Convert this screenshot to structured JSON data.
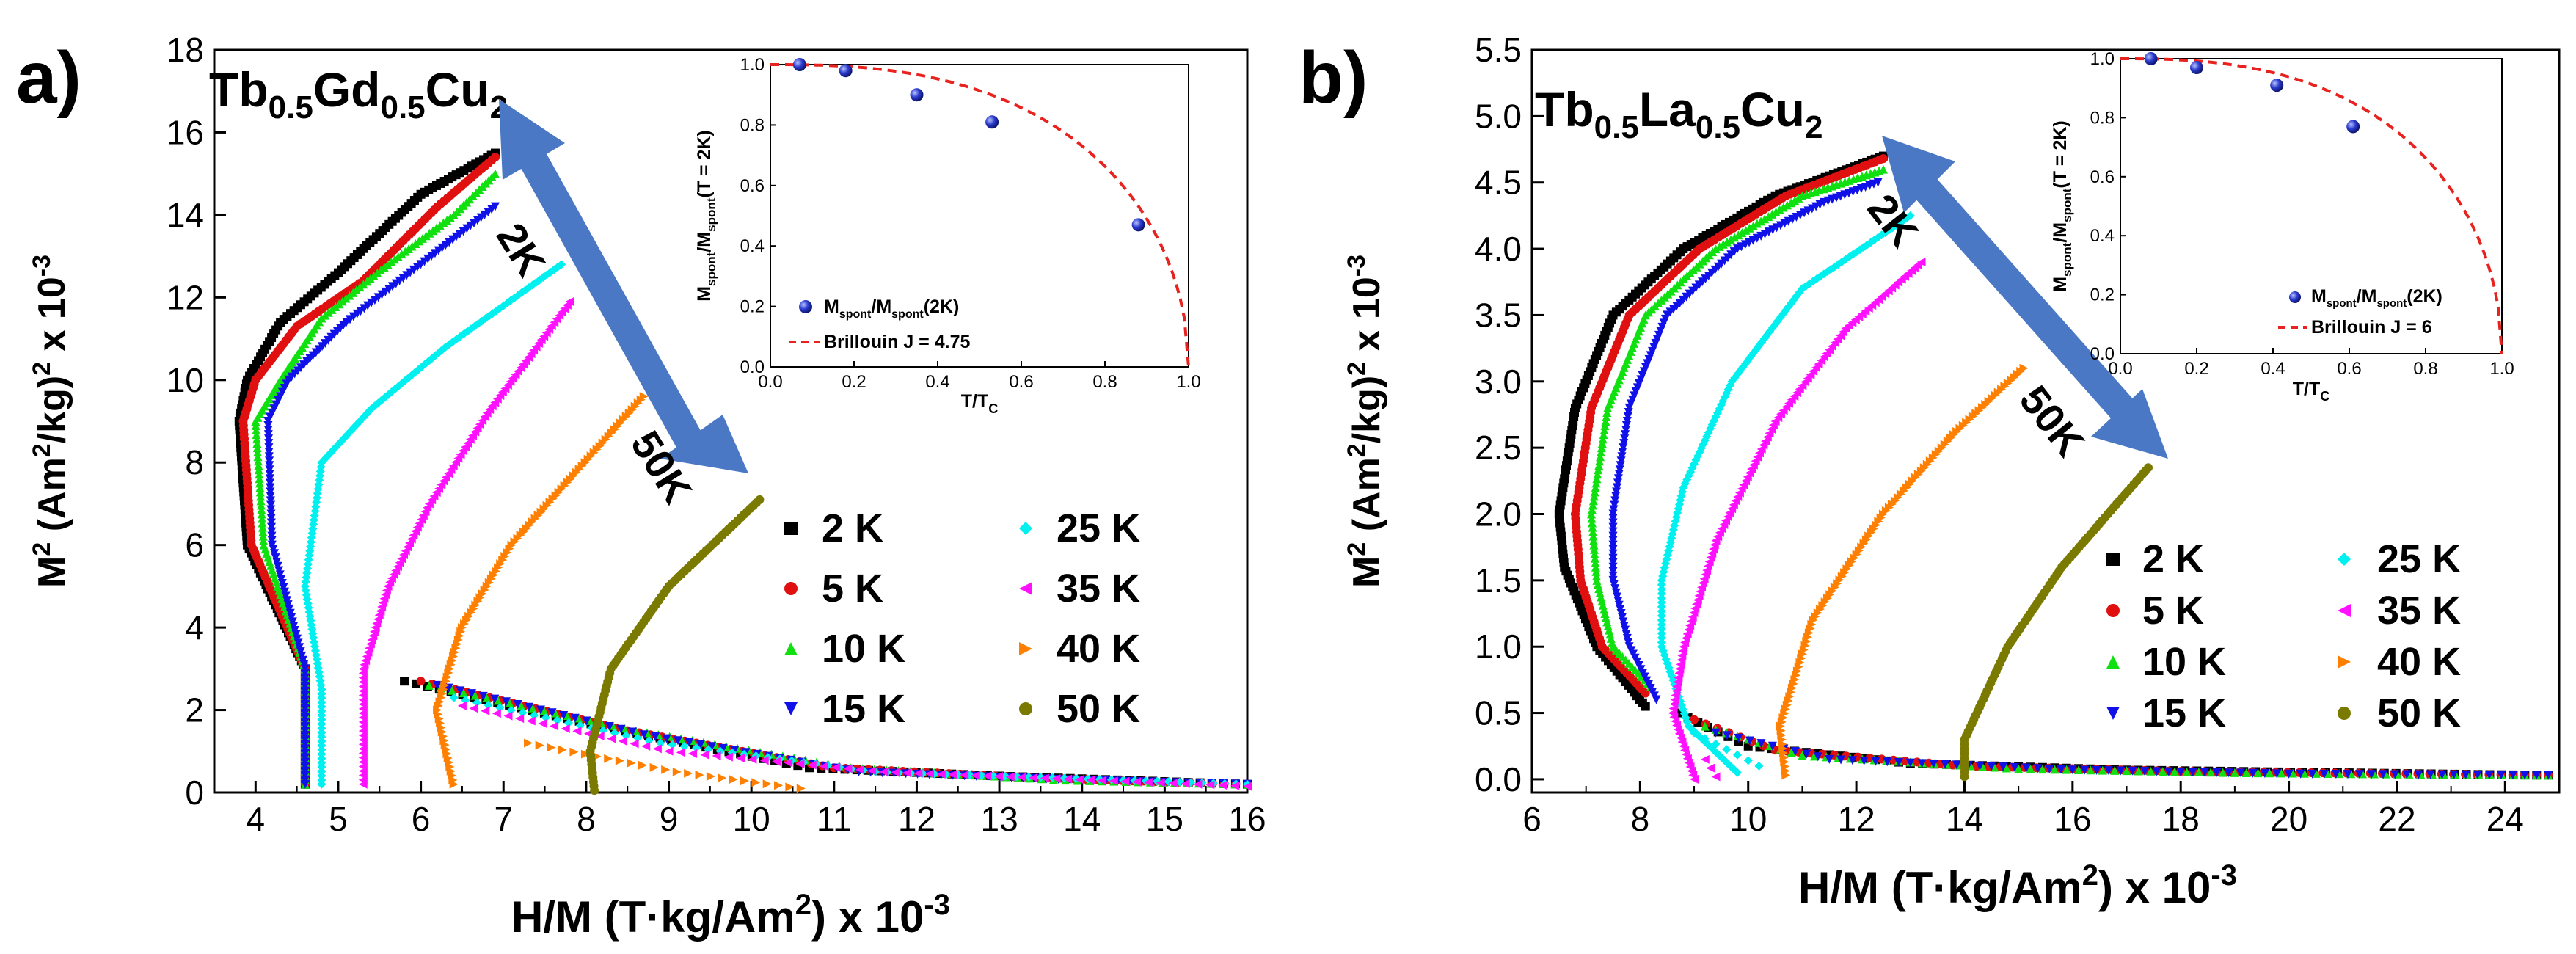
{
  "chart_data": [
    {
      "panel_label": "a)",
      "type": "scatter",
      "compound": {
        "base1": "Tb",
        "sub1": "0.5",
        "base2": "Gd",
        "sub2": "0.5",
        "base3": "Cu",
        "sub3": "2"
      },
      "xlabel": {
        "main": "H/M (T·kg/Am",
        "sup": "2",
        "tail": ") x 10",
        "exp": "-3"
      },
      "ylabel": {
        "main": "M",
        "sup1": "2",
        "mid": " (Am",
        "sup2": "2",
        "tail": "/kg)",
        "sup3": "2",
        "end": " x 10",
        "exp": "-3"
      },
      "xlim": [
        3.5,
        16
      ],
      "ylim": [
        0,
        18
      ],
      "xticks": [
        "4",
        "5",
        "6",
        "7",
        "8",
        "9",
        "10",
        "11",
        "12",
        "13",
        "14",
        "15",
        "16"
      ],
      "yticks": [
        "0",
        "2",
        "4",
        "6",
        "8",
        "10",
        "12",
        "14",
        "16",
        "18"
      ],
      "arrow_labels": {
        "start": "2K",
        "end": "50K"
      },
      "series": [
        {
          "name": "2 K",
          "color": "#000000",
          "marker": "square",
          "points": [
            [
              4.6,
              0.2
            ],
            [
              4.6,
              3
            ],
            [
              3.9,
              6
            ],
            [
              3.8,
              9
            ],
            [
              3.9,
              10
            ],
            [
              4.3,
              11.4
            ],
            [
              5,
              12.6
            ],
            [
              6,
              14.5
            ],
            [
              6.9,
              15.5
            ]
          ],
          "tail": [
            [
              5.8,
              2.7
            ],
            [
              8.2,
              1.6
            ],
            [
              10.7,
              0.6
            ],
            [
              13,
              0.4
            ],
            [
              16,
              0.2
            ]
          ]
        },
        {
          "name": "5 K",
          "color": "#e01010",
          "marker": "circle",
          "points": [
            [
              4.6,
              0.2
            ],
            [
              4.6,
              3
            ],
            [
              3.95,
              6
            ],
            [
              3.85,
              9
            ],
            [
              4,
              10
            ],
            [
              4.5,
              11.3
            ],
            [
              5.3,
              12.4
            ],
            [
              6.2,
              14.2
            ],
            [
              6.9,
              15.4
            ]
          ],
          "tail": [
            [
              6,
              2.7
            ],
            [
              8.5,
              1.5
            ],
            [
              11,
              0.6
            ],
            [
              13.5,
              0.35
            ],
            [
              16,
              0.2
            ]
          ]
        },
        {
          "name": "10 K",
          "color": "#10e010",
          "marker": "triangle-up",
          "points": [
            [
              4.6,
              0.2
            ],
            [
              4.6,
              3
            ],
            [
              4.1,
              6
            ],
            [
              4,
              9
            ],
            [
              4.3,
              10
            ],
            [
              4.8,
              11.5
            ],
            [
              5.6,
              12.8
            ],
            [
              6.4,
              14
            ],
            [
              6.9,
              15
            ]
          ],
          "tail": [
            [
              6.1,
              2.6
            ],
            [
              8.6,
              1.5
            ],
            [
              11.2,
              0.6
            ],
            [
              13.8,
              0.3
            ],
            [
              16,
              0.2
            ]
          ]
        },
        {
          "name": "15 K",
          "color": "#1010e8",
          "marker": "triangle-down",
          "points": [
            [
              4.6,
              0.2
            ],
            [
              4.6,
              3
            ],
            [
              4.2,
              6
            ],
            [
              4.15,
              9
            ],
            [
              4.4,
              10
            ],
            [
              5.1,
              11.4
            ],
            [
              6,
              12.8
            ],
            [
              6.9,
              14.2
            ]
          ],
          "tail": [
            [
              6.2,
              2.6
            ],
            [
              8.7,
              1.4
            ],
            [
              11.3,
              0.5
            ],
            [
              14,
              0.3
            ],
            [
              16,
              0.2
            ]
          ]
        },
        {
          "name": "25 K",
          "color": "#00f0f0",
          "marker": "diamond",
          "points": [
            [
              4.8,
              0.2
            ],
            [
              4.8,
              2.5
            ],
            [
              4.6,
              5
            ],
            [
              4.8,
              8
            ],
            [
              5.4,
              9.3
            ],
            [
              6.3,
              10.8
            ],
            [
              7.7,
              12.8
            ]
          ],
          "tail": [
            [
              6.4,
              2.3
            ],
            [
              8.9,
              1.2
            ],
            [
              11.5,
              0.5
            ],
            [
              14.5,
              0.3
            ],
            [
              16,
              0.2
            ]
          ]
        },
        {
          "name": "35 K",
          "color": "#ff10ff",
          "marker": "triangle-left",
          "points": [
            [
              5.3,
              0.2
            ],
            [
              5.3,
              3
            ],
            [
              5.6,
              5
            ],
            [
              6.1,
              7
            ],
            [
              6.8,
              9.2
            ],
            [
              7.8,
              11.9
            ]
          ],
          "tail": [
            [
              6.5,
              2.1
            ],
            [
              9,
              1
            ],
            [
              11.6,
              0.5
            ],
            [
              14.8,
              0.25
            ],
            [
              16,
              0.15
            ]
          ]
        },
        {
          "name": "40 K",
          "color": "#ff8000",
          "marker": "triangle-right",
          "points": [
            [
              6.4,
              0.2
            ],
            [
              6.2,
              2
            ],
            [
              6.5,
              4
            ],
            [
              7.1,
              6
            ],
            [
              8.7,
              9.6
            ]
          ],
          "tail": [
            [
              7.3,
              1.2
            ],
            [
              9.1,
              0.5
            ],
            [
              10.6,
              0.1
            ]
          ]
        },
        {
          "name": "50 K",
          "color": "#7a7a00",
          "marker": "circle",
          "points": [
            [
              8.1,
              0.05
            ],
            [
              8.05,
              1
            ],
            [
              8.3,
              3
            ],
            [
              9,
              5
            ],
            [
              10.1,
              7.1
            ]
          ]
        }
      ],
      "inset": {
        "xlabel": "T/T",
        "xlabel_sub": "C",
        "ylabel": {
          "m": "M",
          "s1": "spont",
          "mid": "/M",
          "s2": "spont",
          "tail": "(T = 2K)"
        },
        "xticks": [
          "0.0",
          "0.2",
          "0.4",
          "0.6",
          "0.8",
          "1.0"
        ],
        "yticks": [
          "0.0",
          "0.2",
          "0.4",
          "0.6",
          "0.8",
          "1.0"
        ],
        "points": [
          [
            0.07,
            1.0
          ],
          [
            0.18,
            0.98
          ],
          [
            0.35,
            0.9
          ],
          [
            0.53,
            0.81
          ],
          [
            0.88,
            0.47
          ]
        ],
        "fit_J": 4.75,
        "legend": {
          "pts": {
            "m": "M",
            "s1": "spont",
            "mid": "/M",
            "s2": "spont",
            "tail": "(2K)"
          },
          "fit": "Brillouin J = 4.75"
        }
      }
    },
    {
      "panel_label": "b)",
      "type": "scatter",
      "compound": {
        "base1": "Tb",
        "sub1": "0.5",
        "base2": "La",
        "sub2": "0.5",
        "base3": "Cu",
        "sub3": "2"
      },
      "xlabel": {
        "main": "H/M (T·kg/Am",
        "sup": "2",
        "tail": ") x 10",
        "exp": "-3"
      },
      "ylabel": {
        "main": "M",
        "sup1": "2",
        "mid": " (Am",
        "sup2": "2",
        "tail": "/kg)",
        "sup3": "2",
        "end": " x 10",
        "exp": "-3"
      },
      "xlim": [
        6,
        25
      ],
      "ylim": [
        -0.1,
        5.5
      ],
      "xticks": [
        "6",
        "8",
        "10",
        "12",
        "14",
        "16",
        "18",
        "20",
        "22",
        "24"
      ],
      "yticks": [
        "0.0",
        "0.5",
        "1.0",
        "1.5",
        "2.0",
        "2.5",
        "3.0",
        "3.5",
        "4.0",
        "4.5",
        "5.0",
        "5.5"
      ],
      "arrow_labels": {
        "start": "2K",
        "end": "50K"
      },
      "series": [
        {
          "name": "2 K",
          "color": "#000000",
          "marker": "square",
          "points": [
            [
              8.1,
              0.55
            ],
            [
              7.2,
              1
            ],
            [
              6.6,
              1.6
            ],
            [
              6.5,
              2
            ],
            [
              6.8,
              2.8
            ],
            [
              7.5,
              3.5
            ],
            [
              8.8,
              4
            ],
            [
              10.5,
              4.4
            ],
            [
              12.5,
              4.7
            ]
          ],
          "tail": [
            [
              8.7,
              0.5
            ],
            [
              10,
              0.25
            ],
            [
              13,
              0.12
            ],
            [
              17,
              0.07
            ],
            [
              24.8,
              0.03
            ]
          ]
        },
        {
          "name": "5 K",
          "color": "#e01010",
          "marker": "circle",
          "points": [
            [
              8.1,
              0.65
            ],
            [
              7.3,
              1
            ],
            [
              6.9,
              1.5
            ],
            [
              6.8,
              2
            ],
            [
              7.1,
              2.8
            ],
            [
              7.8,
              3.5
            ],
            [
              9.1,
              4
            ],
            [
              10.7,
              4.4
            ],
            [
              12.5,
              4.68
            ]
          ],
          "tail": [
            [
              9,
              0.45
            ],
            [
              10.5,
              0.22
            ],
            [
              14,
              0.1
            ],
            [
              18,
              0.06
            ],
            [
              24.8,
              0.03
            ]
          ]
        },
        {
          "name": "10 K",
          "color": "#10e010",
          "marker": "triangle-up",
          "points": [
            [
              8.2,
              0.7
            ],
            [
              7.5,
              1
            ],
            [
              7.2,
              1.5
            ],
            [
              7.1,
              2
            ],
            [
              7.4,
              2.8
            ],
            [
              8.1,
              3.5
            ],
            [
              9.4,
              4
            ],
            [
              11,
              4.4
            ],
            [
              12.5,
              4.6
            ]
          ],
          "tail": [
            [
              9.2,
              0.4
            ],
            [
              11,
              0.18
            ],
            [
              15,
              0.08
            ],
            [
              19,
              0.05
            ],
            [
              24.8,
              0.03
            ]
          ]
        },
        {
          "name": "15 K",
          "color": "#1010e8",
          "marker": "triangle-down",
          "points": [
            [
              8.3,
              0.6
            ],
            [
              7.8,
              1
            ],
            [
              7.5,
              1.5
            ],
            [
              7.5,
              2
            ],
            [
              7.8,
              2.8
            ],
            [
              8.5,
              3.5
            ],
            [
              9.8,
              4
            ],
            [
              11.4,
              4.35
            ],
            [
              12.4,
              4.5
            ]
          ],
          "tail": [
            [
              9.4,
              0.35
            ],
            [
              11.5,
              0.15
            ],
            [
              16,
              0.07
            ],
            [
              20,
              0.04
            ],
            [
              24.8,
              0.03
            ]
          ]
        },
        {
          "name": "25 K",
          "color": "#00f0f0",
          "marker": "diamond",
          "points": [
            [
              9.8,
              0.05
            ],
            [
              8.9,
              0.4
            ],
            [
              8.4,
              1
            ],
            [
              8.4,
              1.5
            ],
            [
              8.8,
              2.2
            ],
            [
              9.7,
              3
            ],
            [
              11,
              3.7
            ],
            [
              13,
              4.25
            ]
          ],
          "tail": [
            [
              9,
              0.35
            ],
            [
              10.2,
              0.1
            ]
          ]
        },
        {
          "name": "35 K",
          "color": "#ff10ff",
          "marker": "triangle-left",
          "points": [
            [
              9,
              0
            ],
            [
              8.6,
              0.5
            ],
            [
              8.8,
              1
            ],
            [
              9.4,
              1.8
            ],
            [
              10.5,
              2.7
            ],
            [
              11.8,
              3.4
            ],
            [
              13.2,
              3.9
            ]
          ],
          "tail": [
            [
              9.2,
              0.15
            ],
            [
              9.4,
              0.02
            ]
          ]
        },
        {
          "name": "40 K",
          "color": "#ff8000",
          "marker": "triangle-right",
          "points": [
            [
              10.7,
              0.03
            ],
            [
              10.6,
              0.4
            ],
            [
              11.2,
              1.2
            ],
            [
              12.5,
              2
            ],
            [
              13.8,
              2.6
            ],
            [
              15.1,
              3.1
            ]
          ]
        },
        {
          "name": "50 K",
          "color": "#7a7a00",
          "marker": "circle",
          "points": [
            [
              14,
              0.02
            ],
            [
              14,
              0.3
            ],
            [
              14.8,
              1
            ],
            [
              15.8,
              1.6
            ],
            [
              17.4,
              2.35
            ]
          ]
        }
      ],
      "inset": {
        "xlabel": "T/T",
        "xlabel_sub": "C",
        "ylabel": {
          "m": "M",
          "s1": "spont",
          "mid": "/M",
          "s2": "spont",
          "tail": "(T = 2K)"
        },
        "xticks": [
          "0.0",
          "0.2",
          "0.4",
          "0.6",
          "0.8",
          "1.0"
        ],
        "yticks": [
          "0.0",
          "0.2",
          "0.4",
          "0.6",
          "0.8",
          "1.0"
        ],
        "points": [
          [
            0.08,
            1.0
          ],
          [
            0.2,
            0.97
          ],
          [
            0.41,
            0.91
          ],
          [
            0.61,
            0.77
          ]
        ],
        "fit_J": 6,
        "legend": {
          "pts": {
            "m": "M",
            "s1": "spont",
            "mid": "/M",
            "s2": "spont",
            "tail": "(2K)"
          },
          "fit": "Brillouin J = 6"
        }
      }
    }
  ],
  "colors": {
    "arrow": "#4a78c4",
    "fit": "#e8231f",
    "inset_points": "#1a2a9a"
  }
}
